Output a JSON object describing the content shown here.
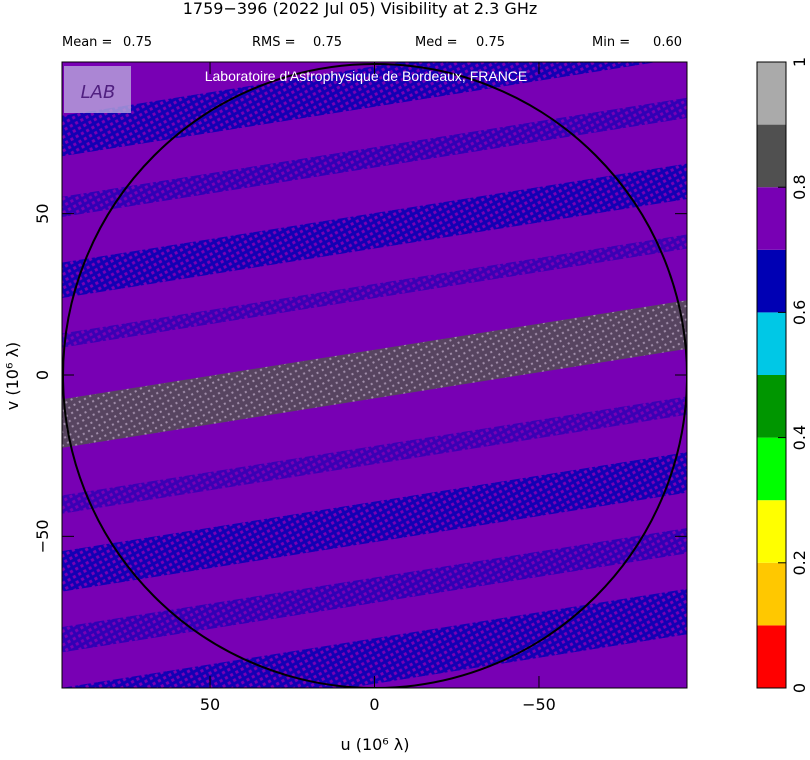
{
  "chart_data": {
    "type": "heatmap",
    "title": "1759−396  (2022 Jul 05)   Visibility at  2.3 GHz",
    "stats": [
      {
        "label": "Mean =",
        "value": "0.75"
      },
      {
        "label": "RMS =",
        "value": "0.75"
      },
      {
        "label": "Med =",
        "value": "0.75"
      },
      {
        "label": "Min =",
        "value": "0.60"
      }
    ],
    "watermark": "Laboratoire d'Astrophysique de Bordeaux, FRANCE",
    "logo": "LAB",
    "x_label": "u  (10⁶ λ)",
    "y_label": "v  (10⁶ λ)",
    "xlim": [
      95,
      -95
    ],
    "ylim": [
      -97,
      97
    ],
    "xticks": [
      50,
      0,
      {
        "value": -50,
        "label": "−50"
      }
    ],
    "yticks": [
      {
        "value": -50,
        "label": "−50"
      },
      0,
      50
    ],
    "colorbar": {
      "bounds": [
        0,
        0.1,
        0.2,
        0.3,
        0.4,
        0.5,
        0.6,
        0.7,
        0.8,
        0.9,
        1
      ],
      "colors": [
        "#ff0000",
        "#ffc800",
        "#ffff00",
        "#00ff00",
        "#009600",
        "#00c8e6",
        "#0000b4",
        "#7800b4",
        "#505050",
        "#aaaaaa"
      ],
      "ticks": [
        0,
        0.2,
        0.4,
        0.6,
        0.8,
        1
      ]
    }
  }
}
